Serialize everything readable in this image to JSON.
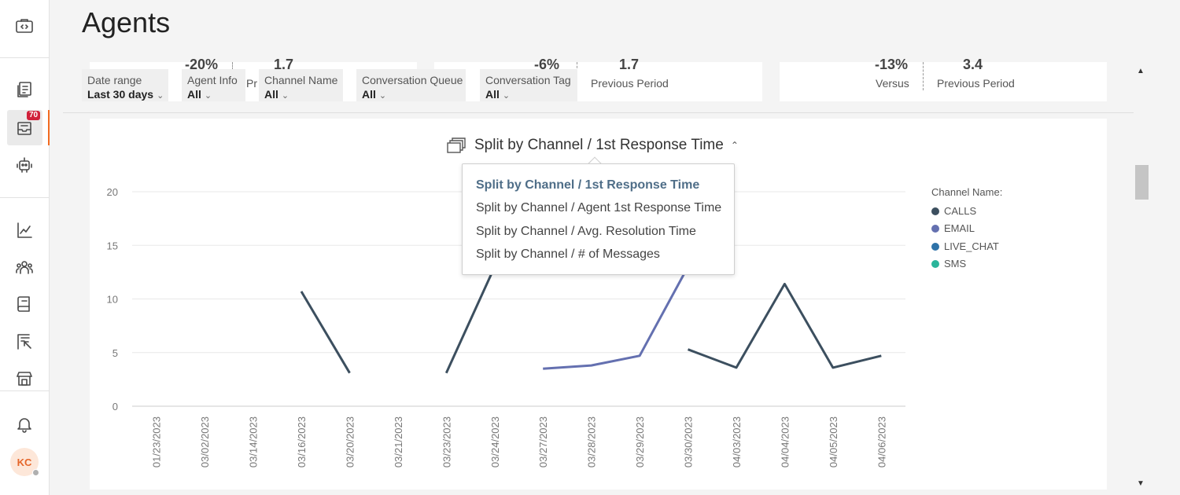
{
  "page": {
    "title": "Agents"
  },
  "sidebar": {
    "icons": [
      "code-window-icon",
      "copy-list-icon",
      "inbox-icon",
      "robot-icon",
      "chart-line-icon",
      "people-icon",
      "book-icon",
      "report-cursor-icon",
      "store-icon",
      "bell-icon"
    ],
    "badge": "70",
    "avatar": "KC"
  },
  "kpis": {
    "k1": "-20%",
    "k2": "1.7",
    "k2_lbl": "Pr",
    "k3": "-6%",
    "k4": "1.7",
    "k4_lbl": "Previous Period",
    "k5": "-13%",
    "k5_lbl": "Versus",
    "k6": "3.4",
    "k6_lbl": "Previous Period"
  },
  "filters": [
    {
      "label": "Date range",
      "value": "Last 30 days"
    },
    {
      "label": "Agent Info",
      "value": "All"
    },
    {
      "label": "Channel Name",
      "value": "All"
    },
    {
      "label": "Conversation Queue",
      "value": "All"
    },
    {
      "label": "Conversation Tag",
      "value": "All"
    }
  ],
  "chart": {
    "title": "Split by Channel / 1st Response Time",
    "caret": "^",
    "menu": [
      "Split by Channel / 1st Response Time",
      "Split by Channel / Agent 1st Response Time",
      "Split by Channel / Avg. Resolution Time",
      "Split by Channel / # of Messages"
    ],
    "legend_title": "Channel Name:"
  },
  "chart_data": {
    "type": "line",
    "categories": [
      "01/23/2023",
      "03/02/2023",
      "03/14/2023",
      "03/16/2023",
      "03/20/2023",
      "03/21/2023",
      "03/23/2023",
      "03/24/2023",
      "03/27/2023",
      "03/28/2023",
      "03/29/2023",
      "03/30/2023",
      "04/03/2023",
      "04/04/2023",
      "04/05/2023",
      "04/06/2023"
    ],
    "ylim": [
      0,
      20
    ],
    "yticks": [
      0,
      5,
      10,
      15,
      20
    ],
    "series": [
      {
        "name": "CALLS",
        "color": "#3c4f5f",
        "segments": [
          [
            [
              3,
              10.7
            ],
            [
              4,
              3.1
            ]
          ],
          [
            [
              6,
              3.1
            ],
            [
              7,
              13.0
            ]
          ],
          [
            [
              11,
              5.3
            ],
            [
              12,
              3.6
            ],
            [
              13,
              11.4
            ],
            [
              14,
              3.6
            ],
            [
              15,
              4.7
            ]
          ]
        ]
      },
      {
        "name": "EMAIL",
        "color": "#6470b0",
        "segments": [
          [
            [
              8,
              3.5
            ],
            [
              9,
              3.8
            ],
            [
              10,
              4.7
            ],
            [
              11,
              13.0
            ]
          ]
        ]
      },
      {
        "name": "LIVE_CHAT",
        "color": "#2e72a8",
        "segments": []
      },
      {
        "name": "SMS",
        "color": "#2ab59b",
        "segments": []
      }
    ],
    "grid": true,
    "legend_position": "right"
  }
}
